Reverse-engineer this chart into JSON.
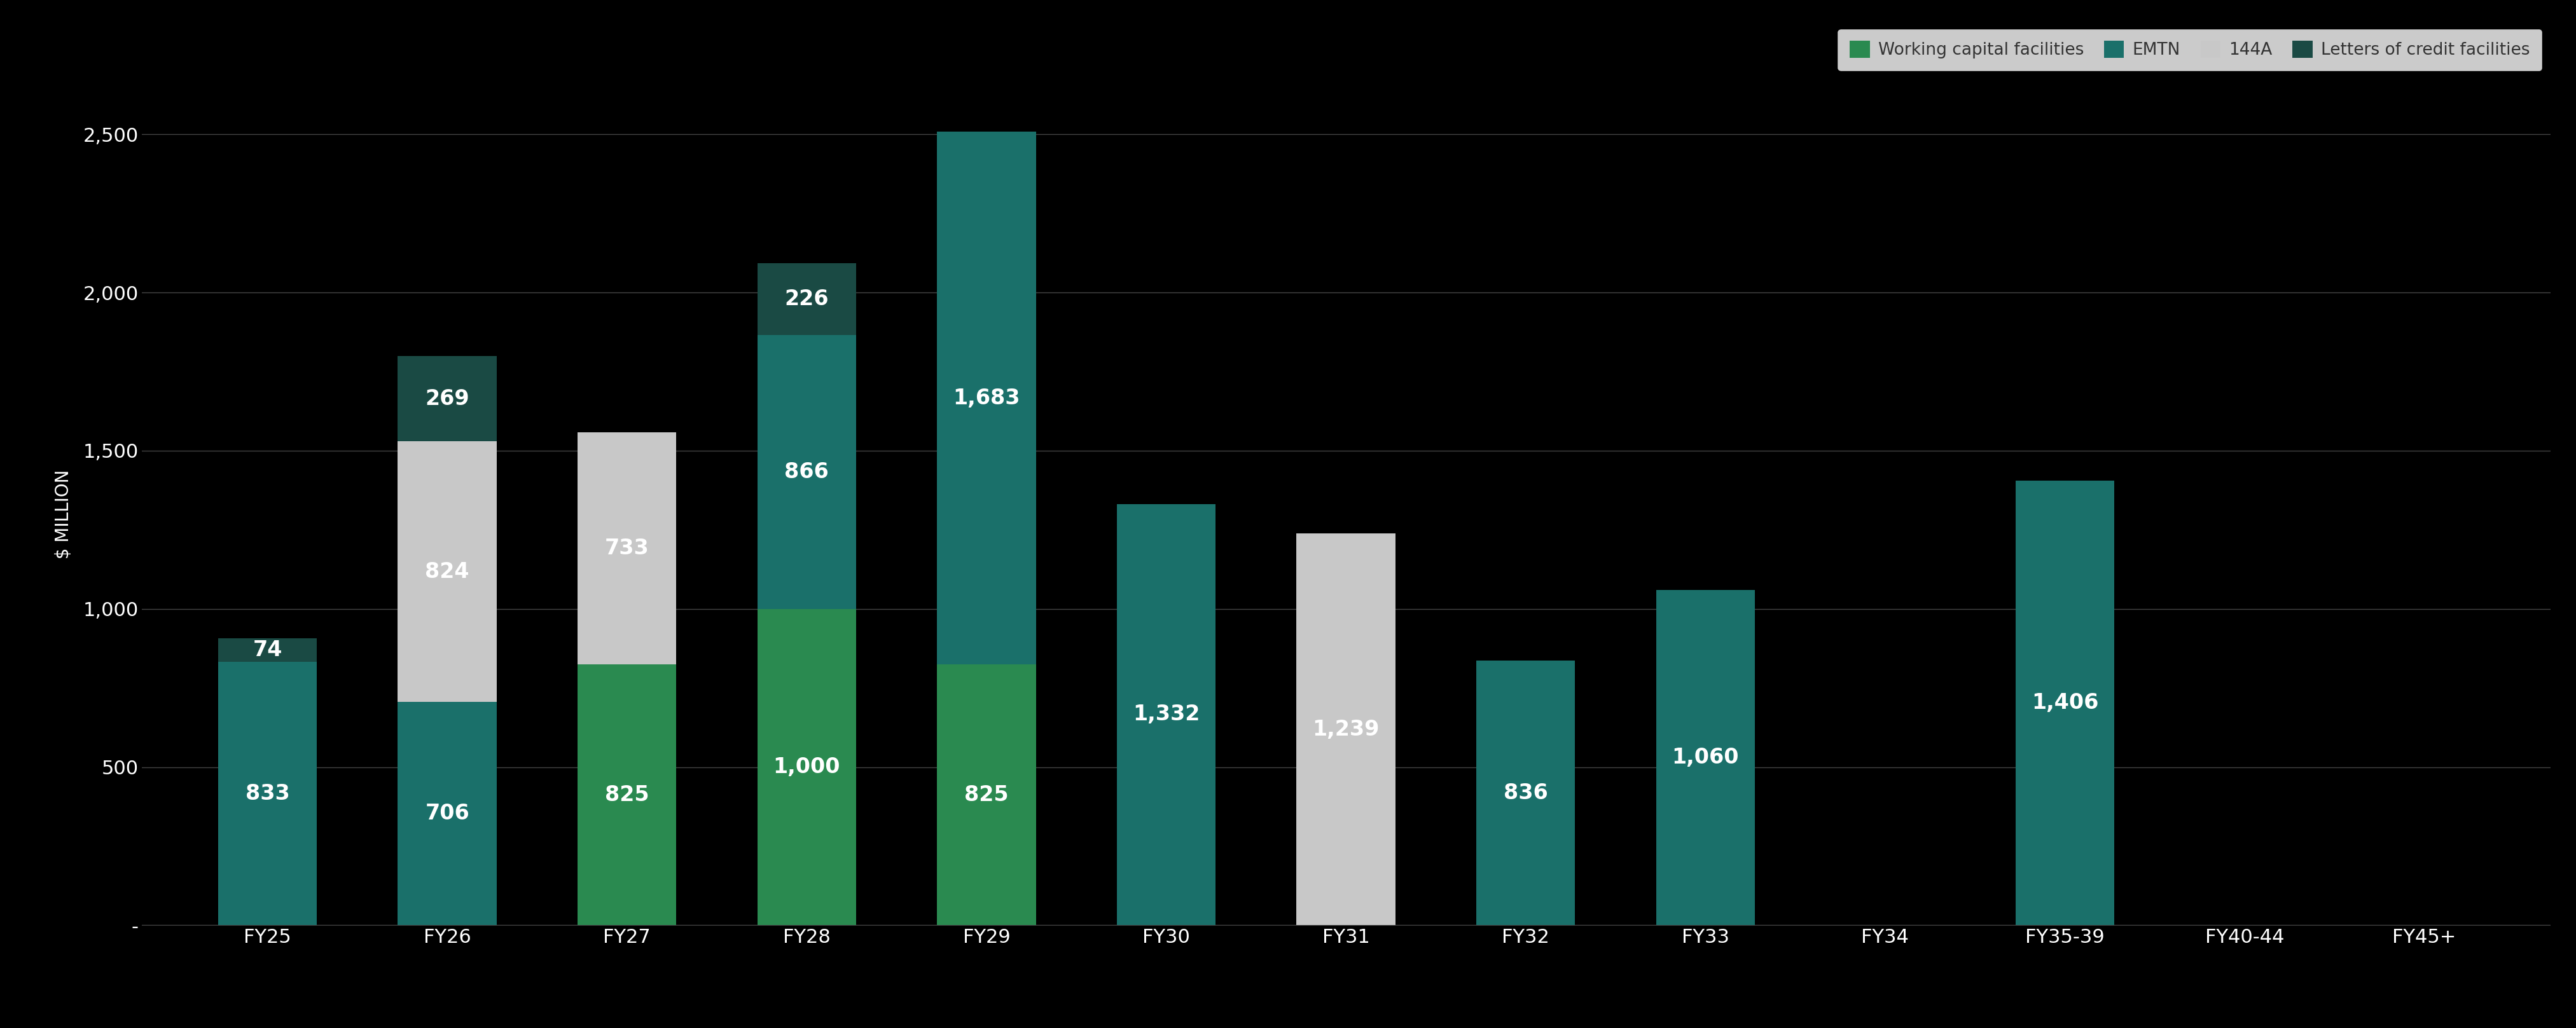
{
  "categories": [
    "FY25",
    "FY26",
    "FY27",
    "FY28",
    "FY29",
    "FY30",
    "FY31",
    "FY32",
    "FY33",
    "FY34",
    "FY35-39",
    "FY40-44",
    "FY45+"
  ],
  "series": {
    "Working capital facilities": {
      "color": "#2a8a50",
      "values": [
        0,
        0,
        825,
        1000,
        825,
        0,
        0,
        0,
        0,
        0,
        0,
        0,
        0
      ]
    },
    "EMTN": {
      "color": "#1a706a",
      "values": [
        833,
        706,
        0,
        866,
        1683,
        1332,
        0,
        836,
        1060,
        0,
        1406,
        0,
        0
      ]
    },
    "144A": {
      "color": "#c8c8c8",
      "values": [
        0,
        824,
        733,
        0,
        0,
        0,
        1239,
        0,
        0,
        0,
        0,
        0,
        0
      ]
    },
    "Letters of credit facilities": {
      "color": "#1a4a44",
      "values": [
        74,
        269,
        0,
        226,
        0,
        0,
        0,
        0,
        0,
        0,
        0,
        0,
        0
      ]
    }
  },
  "ylabel": "$ MILLION",
  "ylim": [
    0,
    2600
  ],
  "yticks": [
    0,
    500,
    1000,
    1500,
    2000,
    2500
  ],
  "ytick_labels": [
    "-",
    "500",
    "1,000",
    "1,500",
    "2,000",
    "2,500"
  ],
  "background_color": "#000000",
  "plot_bg_color": "#000000",
  "text_color": "#ffffff",
  "grid_color": "#444444",
  "bar_width": 0.55,
  "legend_bg": "#ffffff",
  "legend_text_color": "#333333",
  "label_fontsize": 24,
  "tick_fontsize": 22,
  "ylabel_fontsize": 20
}
